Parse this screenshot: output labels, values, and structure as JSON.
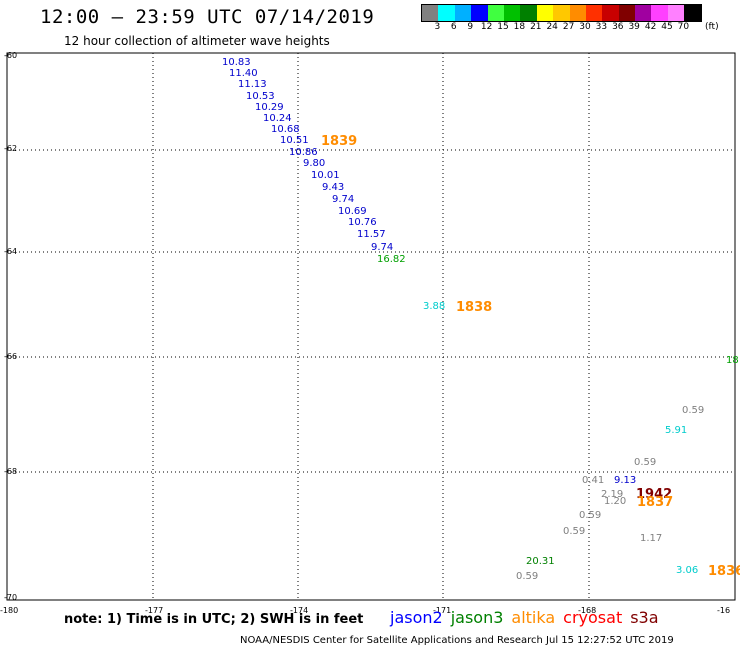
{
  "header": {
    "title": "12:00 – 23:59 UTC 07/14/2019",
    "subtitle": "12 hour collection of altimeter wave heights"
  },
  "legend": {
    "colors": [
      "#808080",
      "#00ffff",
      "#00b0ff",
      "#0000ff",
      "#40ff40",
      "#00c000",
      "#008000",
      "#ffff00",
      "#ffc800",
      "#ff8c00",
      "#ff3000",
      "#c80000",
      "#800000",
      "#a000a0",
      "#ff40ff",
      "#ff80ff",
      "#000000"
    ],
    "labels": [
      "3",
      "6",
      "9",
      "12",
      "15",
      "18",
      "21",
      "24",
      "27",
      "30",
      "33",
      "36",
      "39",
      "42",
      "45",
      "70",
      "(ft)"
    ]
  },
  "axes": {
    "lat_labels": [
      "-60",
      "-62",
      "-64",
      "-66",
      "-68",
      "-70"
    ],
    "lon_labels": [
      "-180",
      "-177",
      "-174",
      "-171",
      "-168",
      "-16"
    ]
  },
  "observations": [
    {
      "text": "10.83",
      "color": "#0000cc"
    },
    {
      "text": "11.40",
      "color": "#0000cc"
    },
    {
      "text": "11.13",
      "color": "#0000cc"
    },
    {
      "text": "10.53",
      "color": "#0000cc"
    },
    {
      "text": "10.29",
      "color": "#0000cc"
    },
    {
      "text": "10.24",
      "color": "#0000cc"
    },
    {
      "text": "10.68",
      "color": "#0000cc"
    },
    {
      "text": "10.51",
      "color": "#0000cc"
    },
    {
      "text": "10.86",
      "color": "#0000cc"
    },
    {
      "text": "9.80",
      "color": "#0000cc"
    },
    {
      "text": "10.01",
      "color": "#0000cc"
    },
    {
      "text": "9.43",
      "color": "#0000cc"
    },
    {
      "text": "9.74",
      "color": "#0000cc"
    },
    {
      "text": "10.69",
      "color": "#0000cc"
    },
    {
      "text": "10.76",
      "color": "#0000cc"
    },
    {
      "text": "11.57",
      "color": "#0000cc"
    },
    {
      "text": "9.74",
      "color": "#0000cc"
    },
    {
      "text": "16.82",
      "color": "#00a000"
    },
    {
      "text": "3.88",
      "color": "#00cccc"
    },
    {
      "text": "18",
      "color": "#00a000"
    },
    {
      "text": "0.59",
      "color": "#808080"
    },
    {
      "text": "5.91",
      "color": "#00cccc"
    },
    {
      "text": "0.59",
      "color": "#808080"
    },
    {
      "text": "0.41",
      "color": "#808080"
    },
    {
      "text": "9.13",
      "color": "#0000cc"
    },
    {
      "text": "2.19",
      "color": "#808080"
    },
    {
      "text": "1.20",
      "color": "#808080"
    },
    {
      "text": "0.59",
      "color": "#808080"
    },
    {
      "text": "0.59",
      "color": "#808080"
    },
    {
      "text": "1.17",
      "color": "#808080"
    },
    {
      "text": "20.31",
      "color": "#008000"
    },
    {
      "text": "0.59",
      "color": "#808080"
    },
    {
      "text": "3.06",
      "color": "#00cccc"
    }
  ],
  "pass_labels": [
    {
      "text": "1839",
      "color": "#ff8c00"
    },
    {
      "text": "1838",
      "color": "#ff8c00"
    },
    {
      "text": "1942",
      "color": "#800000"
    },
    {
      "text": "1837",
      "color": "#ff8c00"
    },
    {
      "text": "1836",
      "color": "#ff8c00"
    }
  ],
  "footer": {
    "note": "note: 1) Time is in UTC; 2) SWH is in feet",
    "credit": "NOAA/NESDIS Center for Satellite Applications and Research   Jul 15 12:27:52 UTC 2019"
  },
  "satellites": [
    {
      "name": "jason2",
      "color": "#0000ff"
    },
    {
      "name": "jason3",
      "color": "#008000"
    },
    {
      "name": "altika",
      "color": "#ff8c00"
    },
    {
      "name": "cryosat",
      "color": "#ff0000"
    },
    {
      "name": "s3a",
      "color": "#800000"
    }
  ]
}
